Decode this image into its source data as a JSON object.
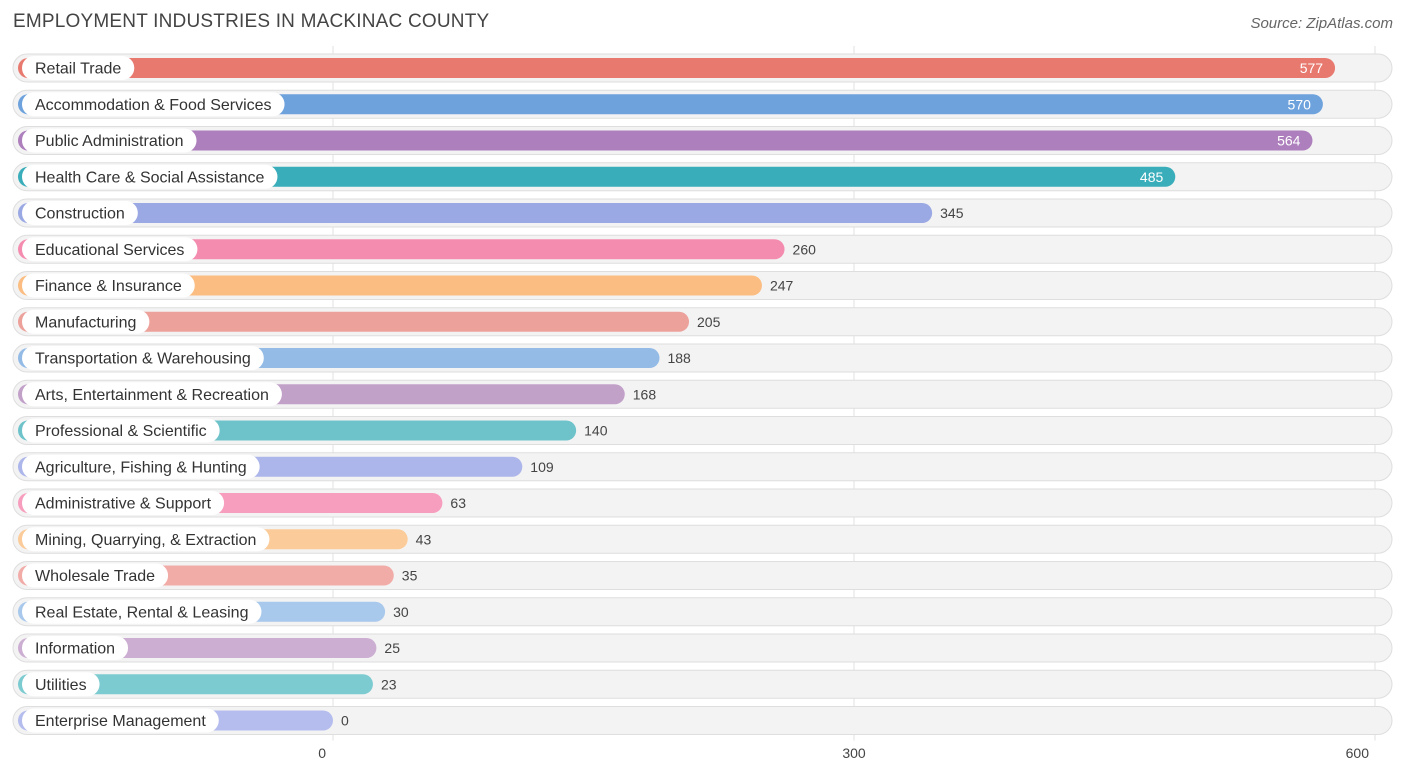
{
  "header": {
    "title": "EMPLOYMENT INDUSTRIES IN MACKINAC COUNTY",
    "source": "Source: ZipAtlas.com"
  },
  "chart_data": {
    "type": "bar",
    "orientation": "horizontal",
    "title": "EMPLOYMENT INDUSTRIES IN MACKINAC COUNTY",
    "xlabel": "",
    "ylabel": "",
    "xlim": [
      0,
      600
    ],
    "ticks": [
      0,
      300,
      600
    ],
    "tick_labels": [
      "0",
      "300",
      "600"
    ],
    "grid": true,
    "categories": [
      "Retail Trade",
      "Accommodation & Food Services",
      "Public Administration",
      "Health Care & Social Assistance",
      "Construction",
      "Educational Services",
      "Finance & Insurance",
      "Manufacturing",
      "Transportation & Warehousing",
      "Arts, Entertainment & Recreation",
      "Professional & Scientific",
      "Agriculture, Fishing & Hunting",
      "Administrative & Support",
      "Mining, Quarrying, & Extraction",
      "Wholesale Trade",
      "Real Estate, Rental & Leasing",
      "Information",
      "Utilities",
      "Enterprise Management"
    ],
    "values": [
      577,
      570,
      564,
      485,
      345,
      260,
      247,
      205,
      188,
      168,
      140,
      109,
      63,
      43,
      35,
      30,
      25,
      23,
      0
    ],
    "colors": [
      "#e8796f",
      "#6ea2dd",
      "#ad7fbc",
      "#3aadba",
      "#9aa8e4",
      "#f48caf",
      "#fbbd82",
      "#eca19b",
      "#93bbe6",
      "#c2a1c9",
      "#6ec3cb",
      "#adb6ea",
      "#f79dbd",
      "#fbcb99",
      "#f2aca8",
      "#a8c8ec",
      "#cdaed3",
      "#7ccbd1",
      "#b5bdee"
    ]
  }
}
